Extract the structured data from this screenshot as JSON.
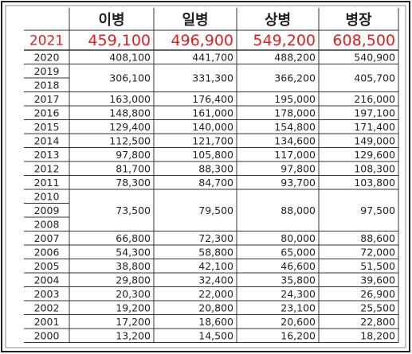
{
  "table": {
    "header": [
      "이병",
      "일병",
      "상병",
      "병장"
    ],
    "highlight": {
      "year": "2021",
      "values": [
        "459,100",
        "496,900",
        "549,200",
        "608,500"
      ]
    },
    "rows": [
      {
        "years": [
          "2020"
        ],
        "values": [
          "408,100",
          "441,700",
          "488,200",
          "540,900"
        ]
      },
      {
        "years": [
          "2019",
          "2018"
        ],
        "values": [
          "306,100",
          "331,300",
          "366,200",
          "405,700"
        ]
      },
      {
        "years": [
          "2017"
        ],
        "values": [
          "163,000",
          "176,400",
          "195,000",
          "216,000"
        ]
      },
      {
        "years": [
          "2016"
        ],
        "values": [
          "148,800",
          "161,000",
          "178,000",
          "197,100"
        ]
      },
      {
        "years": [
          "2015"
        ],
        "values": [
          "129,400",
          "140,000",
          "154,800",
          "171,400"
        ]
      },
      {
        "years": [
          "2014"
        ],
        "values": [
          "112,500",
          "121,700",
          "134,600",
          "149,000"
        ]
      },
      {
        "years": [
          "2013"
        ],
        "values": [
          "97,800",
          "105,800",
          "117,000",
          "129,600"
        ]
      },
      {
        "years": [
          "2012"
        ],
        "values": [
          "81,700",
          "88,300",
          "97,800",
          "108,300"
        ]
      },
      {
        "years": [
          "2011"
        ],
        "values": [
          "78,300",
          "84,700",
          "93,700",
          "103,800"
        ]
      },
      {
        "years": [
          "2010",
          "2009",
          "2008"
        ],
        "values": [
          "73,500",
          "79,500",
          "88,000",
          "97,500"
        ]
      },
      {
        "years": [
          "2007"
        ],
        "values": [
          "66,800",
          "72,300",
          "80,000",
          "88,600"
        ]
      },
      {
        "years": [
          "2006"
        ],
        "values": [
          "54,300",
          "58,800",
          "65,000",
          "72,000"
        ]
      },
      {
        "years": [
          "2005"
        ],
        "values": [
          "38,800",
          "42,100",
          "46,600",
          "51,500"
        ]
      },
      {
        "years": [
          "2004"
        ],
        "values": [
          "29,800",
          "32,400",
          "35,800",
          "39,600"
        ]
      },
      {
        "years": [
          "2003"
        ],
        "values": [
          "20,300",
          "22,000",
          "24,300",
          "26,900"
        ]
      },
      {
        "years": [
          "2002"
        ],
        "values": [
          "19,200",
          "20,800",
          "23,100",
          "25,500"
        ]
      },
      {
        "years": [
          "2001"
        ],
        "values": [
          "17,200",
          "18,600",
          "20,600",
          "22,800"
        ]
      },
      {
        "years": [
          "2000"
        ],
        "values": [
          "13,200",
          "14,500",
          "16,200",
          "18,200"
        ]
      }
    ]
  }
}
